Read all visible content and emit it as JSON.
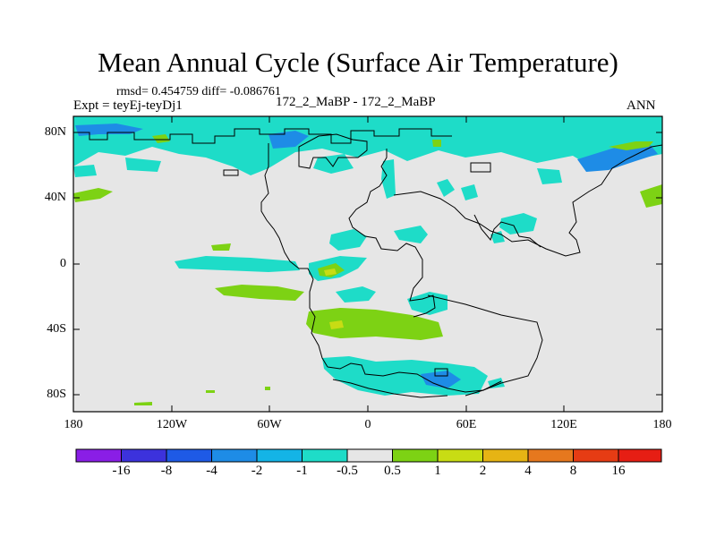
{
  "header": {
    "title": "Mean Annual Cycle (Surface Air Temperature)",
    "stats": "rmsd= 0.454759 diff= -0.086761",
    "experiment": "Expt = teyEj-teyDj1",
    "case": "172_2_MaBP - 172_2_MaBP",
    "season": "ANN"
  },
  "axes": {
    "y_labels": [
      "80N",
      "40N",
      "0",
      "40S",
      "80S"
    ],
    "x_labels": [
      "180",
      "120W",
      "60W",
      "0",
      "60E",
      "120E",
      "180"
    ]
  },
  "colorbar": {
    "labels": [
      "-16",
      "-8",
      "-4",
      "-2",
      "-1",
      "-0.5",
      "0.5",
      "1",
      "2",
      "4",
      "8",
      "16"
    ],
    "colors": [
      "#8a1ee6",
      "#3c32dc",
      "#1e5ae6",
      "#1e8ce6",
      "#14b4e6",
      "#1edcc8",
      "#e6e6e6",
      "#7dd214",
      "#c8dc14",
      "#e6b414",
      "#e6781e",
      "#e63c14",
      "#e61e14"
    ]
  },
  "chart_data": {
    "type": "map",
    "title": "Mean Annual Cycle (Surface Air Temperature)",
    "variable": "Surface Air Temperature difference",
    "lon_range": [
      -180,
      180
    ],
    "lat_range": [
      -90,
      90
    ],
    "contour_levels": [
      -16,
      -8,
      -4,
      -2,
      -1,
      -0.5,
      0.5,
      1,
      2,
      4,
      8,
      16
    ],
    "background_class": "-0.5 to 0.5"
  }
}
